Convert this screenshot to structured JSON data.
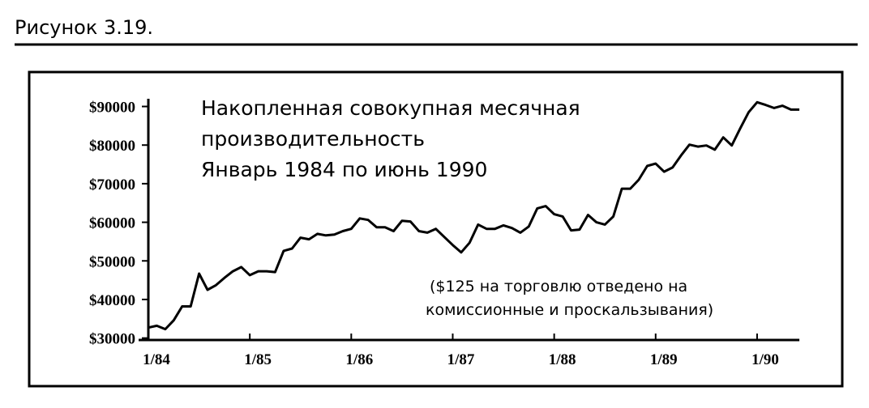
{
  "figure_label": "Рисунок 3.19.",
  "chart_data": {
    "type": "line",
    "title": [
      "Накопленная совокупная месячная",
      "производительность",
      "Январь 1984 по июнь 1990"
    ],
    "annotation": [
      "($125 на торговлю отведено на",
      "комиссионные и проскальзывания)"
    ],
    "categories": [
      "1/84",
      null,
      null,
      null,
      null,
      null,
      null,
      null,
      null,
      null,
      null,
      null,
      "1/85",
      null,
      null,
      null,
      null,
      null,
      null,
      null,
      null,
      null,
      null,
      null,
      "1/86",
      null,
      null,
      null,
      null,
      null,
      null,
      null,
      null,
      null,
      null,
      null,
      "1/87",
      null,
      null,
      null,
      null,
      null,
      null,
      null,
      null,
      null,
      null,
      null,
      "1/88",
      null,
      null,
      null,
      null,
      null,
      null,
      null,
      null,
      null,
      null,
      null,
      "1/89",
      null,
      null,
      null,
      null,
      null,
      null,
      null,
      null,
      null,
      null,
      null,
      "1/90",
      null,
      null,
      null,
      null,
      null
    ],
    "values": [
      32700,
      33200,
      32300,
      34600,
      38200,
      38200,
      46700,
      42500,
      43700,
      45600,
      47300,
      48400,
      46300,
      47300,
      47300,
      47100,
      52600,
      53200,
      56000,
      55600,
      57000,
      56600,
      56800,
      57700,
      58300,
      61000,
      60600,
      58700,
      58700,
      57700,
      60400,
      60200,
      57700,
      57300,
      58300,
      56200,
      54100,
      52200,
      54700,
      59400,
      58300,
      58300,
      59200,
      58500,
      57300,
      58900,
      63600,
      64200,
      62100,
      61500,
      57900,
      58100,
      61900,
      60000,
      59400,
      61500,
      68700,
      68700,
      71000,
      74600,
      75200,
      73100,
      74200,
      77300,
      80100,
      79600,
      79900,
      78800,
      82000,
      79900,
      84300,
      88500,
      91100,
      90400,
      89600,
      90200,
      89200,
      89200
    ],
    "color": "#000000",
    "ylim": [
      29500,
      92000
    ],
    "yticks": [
      {
        "value": 30000,
        "label": "$30000"
      },
      {
        "value": 40000,
        "label": "$40000"
      },
      {
        "value": 50000,
        "label": "$50000"
      },
      {
        "value": 60000,
        "label": "$60000"
      },
      {
        "value": 70000,
        "label": "$70000"
      },
      {
        "value": 80000,
        "label": "$80000"
      },
      {
        "value": 90000,
        "label": "$90000"
      }
    ],
    "grid": false
  }
}
